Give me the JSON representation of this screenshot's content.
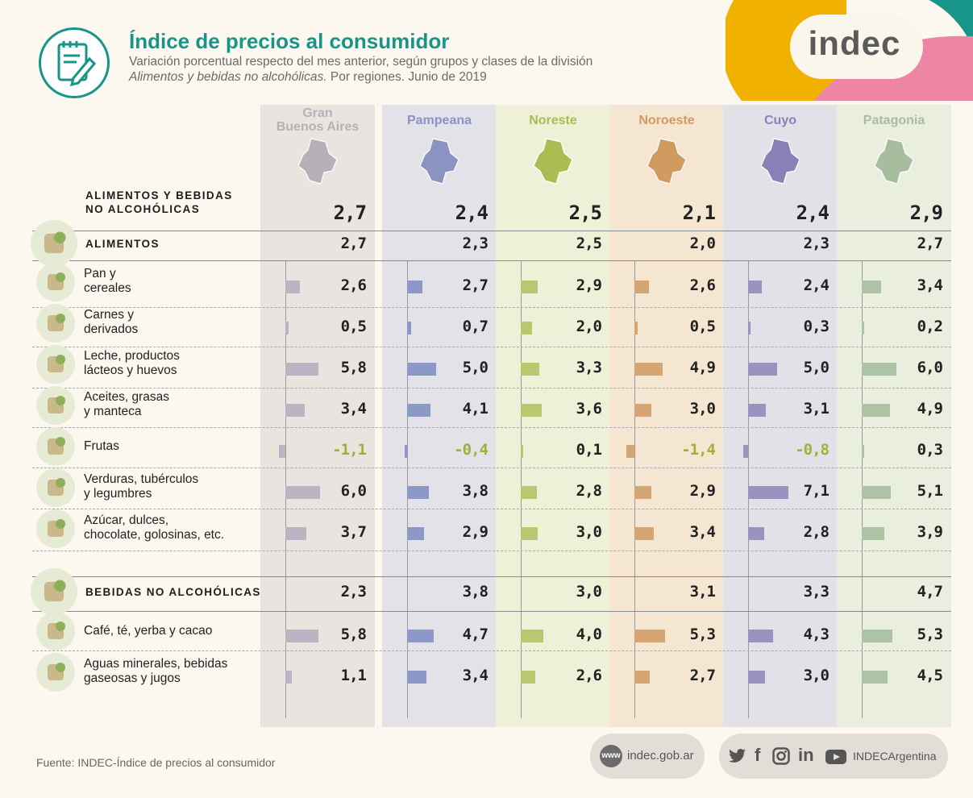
{
  "header": {
    "title": "Índice de precios al consumidor",
    "subtitle_line1": "Variación porcentual respecto del mes anterior, según grupos y clases de la división",
    "subtitle_line2_italic": "Alimentos y bebidas no alcohólicas.",
    "subtitle_line2_rest": " Por regiones. Junio de 2019",
    "brand": "indec"
  },
  "footer": {
    "source": "Fuente: INDEC-Índice de precios al consumidor",
    "website_badge": "www",
    "website": "indec.gob.ar",
    "social_handle": "INDECArgentina",
    "social_icons": [
      "twitter-icon",
      "facebook-icon",
      "instagram-icon",
      "linkedin-icon",
      "youtube-icon"
    ]
  },
  "colors": {
    "accent": "#17958a",
    "negative": "#9db236"
  },
  "chart_data": {
    "type": "bar",
    "title": "Índice de precios al consumidor",
    "regions": [
      {
        "name_line1": "Gran",
        "name_line2": "Buenos Aires",
        "bg": "#e8e4e0",
        "bar": "#bcb3c3",
        "head": "#b6b1b9"
      },
      {
        "name_line1": "",
        "name_line2": "Pampeana",
        "bg": "#e2e2e8",
        "bar": "#8c98c6",
        "head": "#8a93c2"
      },
      {
        "name_line1": "",
        "name_line2": "Noreste",
        "bg": "#eef1d8",
        "bar": "#b9c870",
        "head": "#a9bd52"
      },
      {
        "name_line1": "",
        "name_line2": "Noroeste",
        "bg": "#f5e6d2",
        "bar": "#d6a574",
        "head": "#d19a61"
      },
      {
        "name_line1": "",
        "name_line2": "Cuyo",
        "bg": "#e2e1e8",
        "bar": "#9c92c0",
        "head": "#8a80b8"
      },
      {
        "name_line1": "",
        "name_line2": "Patagonia",
        "bg": "#eaeedf",
        "bar": "#aec3a6",
        "head": "#a7bd9e"
      }
    ],
    "rows": [
      {
        "label1": "ALIMENTOS Y BEBIDAS",
        "label2": "NO ALCOHÓLICAS",
        "kind": "total",
        "values": [
          "2,7",
          "2,4",
          "2,5",
          "2,1",
          "2,4",
          "2,9"
        ],
        "num": [
          2.7,
          2.4,
          2.5,
          2.1,
          2.4,
          2.9
        ]
      },
      {
        "label1": "ALIMENTOS",
        "label2": "",
        "kind": "section",
        "icon": "chicken-icon",
        "values": [
          "2,7",
          "2,3",
          "2,5",
          "2,0",
          "2,3",
          "2,7"
        ],
        "num": [
          2.7,
          2.3,
          2.5,
          2.0,
          2.3,
          2.7
        ]
      },
      {
        "label1": "Pan y",
        "label2": "cereales",
        "kind": "item",
        "icon": "bread-icon",
        "values": [
          "2,6",
          "2,7",
          "2,9",
          "2,6",
          "2,4",
          "3,4"
        ],
        "num": [
          2.6,
          2.7,
          2.9,
          2.6,
          2.4,
          3.4
        ]
      },
      {
        "label1": "Carnes y",
        "label2": "derivados",
        "kind": "item",
        "icon": "meat-icon",
        "values": [
          "0,5",
          "0,7",
          "2,0",
          "0,5",
          "0,3",
          "0,2"
        ],
        "num": [
          0.5,
          0.7,
          2.0,
          0.5,
          0.3,
          0.2
        ]
      },
      {
        "label1": "Leche, productos",
        "label2": "lácteos y huevos",
        "kind": "item",
        "icon": "milk-icon",
        "values": [
          "5,8",
          "5,0",
          "3,3",
          "4,9",
          "5,0",
          "6,0"
        ],
        "num": [
          5.8,
          5.0,
          3.3,
          4.9,
          5.0,
          6.0
        ]
      },
      {
        "label1": "Aceites, grasas",
        "label2": "y manteca",
        "kind": "item",
        "icon": "oil-icon",
        "values": [
          "3,4",
          "4,1",
          "3,6",
          "3,0",
          "3,1",
          "4,9"
        ],
        "num": [
          3.4,
          4.1,
          3.6,
          3.0,
          3.1,
          4.9
        ]
      },
      {
        "label1": "Frutas",
        "label2": "",
        "kind": "item",
        "icon": "banana-icon",
        "values": [
          "-1,1",
          "-0,4",
          "0,1",
          "-1,4",
          "-0,8",
          "0,3"
        ],
        "num": [
          -1.1,
          -0.4,
          0.1,
          -1.4,
          -0.8,
          0.3
        ]
      },
      {
        "label1": "Verduras, tubérculos",
        "label2": "y legumbres",
        "kind": "item",
        "icon": "vegetables-icon",
        "values": [
          "6,0",
          "3,8",
          "2,8",
          "2,9",
          "7,1",
          "5,1"
        ],
        "num": [
          6.0,
          3.8,
          2.8,
          2.9,
          7.1,
          5.1
        ]
      },
      {
        "label1": "Azúcar, dulces,",
        "label2": "chocolate, golosinas, etc.",
        "kind": "item",
        "icon": "candy-icon",
        "values": [
          "3,7",
          "2,9",
          "3,0",
          "3,4",
          "2,8",
          "3,9"
        ],
        "num": [
          3.7,
          2.9,
          3.0,
          3.4,
          2.8,
          3.9
        ]
      },
      {
        "label1": "BEBIDAS NO ALCOHÓLICAS",
        "label2": "",
        "kind": "section",
        "icon": "bottles-icon",
        "values": [
          "2,3",
          "3,8",
          "3,0",
          "3,1",
          "3,3",
          "4,7"
        ],
        "num": [
          2.3,
          3.8,
          3.0,
          3.1,
          3.3,
          4.7
        ]
      },
      {
        "label1": "Café, té, yerba y cacao",
        "label2": "",
        "kind": "item",
        "icon": "coffee-icon",
        "values": [
          "5,8",
          "4,7",
          "4,0",
          "5,3",
          "4,3",
          "5,3"
        ],
        "num": [
          5.8,
          4.7,
          4.0,
          5.3,
          4.3,
          5.3
        ]
      },
      {
        "label1": "Aguas minerales, bebidas",
        "label2": "gaseosas y jugos",
        "kind": "item",
        "icon": "juice-icon",
        "values": [
          "1,1",
          "3,4",
          "2,6",
          "2,7",
          "3,0",
          "4,5"
        ],
        "num": [
          1.1,
          3.4,
          2.6,
          2.7,
          3.0,
          4.5
        ]
      }
    ]
  }
}
